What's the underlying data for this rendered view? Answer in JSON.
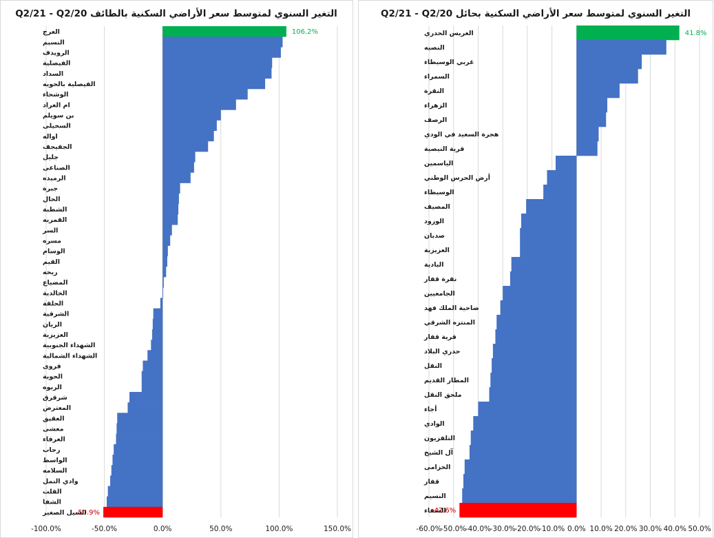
{
  "chart_data": [
    {
      "type": "bar",
      "orientation": "horizontal",
      "title": "التغير السنوي لمتوسط سعر الأراضي السكنية بالطائف Q2/21 - Q2/20",
      "categories": [
        "العرج",
        "النسيم",
        "الرويدف",
        "الفيصلية",
        "السداد",
        "الفيصلية بالحويه",
        "الوشحاء",
        "ام العراد",
        "بن سويلم",
        "السحيلى",
        "اواله",
        "الجفيجف",
        "جليل",
        "الصناعى",
        "الرميده",
        "جبرة",
        "الحال",
        "الشطبة",
        "القمريه",
        "السر",
        "مسره",
        "الوسام",
        "القيم",
        "ريحه",
        "المضياع",
        "الخالدية",
        "الحلقة",
        "الشرقية",
        "الريان",
        "العزيزية",
        "الشهداء الجنوبية",
        "الشهداء الشمالية",
        "قروى",
        "الحوية",
        "الربوه",
        "شرقرق",
        "المعترض",
        "العقيق",
        "معشى",
        "العرفاء",
        "رحاب",
        "الواسط",
        "السلامه",
        "وادي النمل",
        "القلت",
        "الشفا",
        "السيل الصغير"
      ],
      "values": [
        106.2,
        103.0,
        101.5,
        94.0,
        93.5,
        88.0,
        73.0,
        63.0,
        50.0,
        46.5,
        44.0,
        39.0,
        28.0,
        27.0,
        24.0,
        15.0,
        14.0,
        13.5,
        13.0,
        8.0,
        6.5,
        4.5,
        4.0,
        3.0,
        1.0,
        0.5,
        -2.0,
        -8.0,
        -8.5,
        -9.0,
        -10.0,
        -13.0,
        -17.0,
        -18.0,
        -18.0,
        -28.5,
        -30.0,
        -39.0,
        -39.5,
        -40.0,
        -42.0,
        -43.0,
        -44.0,
        -45.0,
        -47.0,
        -48.0,
        -50.9
      ],
      "highlights": {
        "0": "#00b050",
        "46": "#ff0000"
      },
      "bar_color": "#4472c4",
      "data_labels": [
        {
          "index": 0,
          "text": "106.2%",
          "color": "#00b050"
        },
        {
          "index": 46,
          "text": "-50.9%",
          "color": "#c00000"
        }
      ],
      "xlim": [
        -100,
        150
      ],
      "xticks": [
        -100,
        -50,
        0,
        50,
        100,
        150
      ],
      "xtick_labels": [
        "-100.0%",
        "-50.0%",
        "0.0%",
        "50.0%",
        "100.0%",
        "150.0%"
      ],
      "grid": true
    },
    {
      "type": "bar",
      "orientation": "horizontal",
      "title": "التغير السنوي لمتوسط سعر الأراضي السكنية بحائل Q2/21 - Q2/20",
      "categories": [
        "العريس الحدري",
        "النصيه",
        "غربي الوسيطاء",
        "السمراء",
        "النقرة",
        "الزهراء",
        "الرصف",
        "هجرة السعيد في الودي",
        "قرية النيصية",
        "الياسمين",
        "أرض الحرس الوطني",
        "الوسيطاء",
        "المصيف",
        "الورود",
        "صديان",
        "العزيزية",
        "البادية",
        "نقرة قفار",
        "الجامعيين",
        "ضاحية الملك فهد",
        "المنتزه الشرقي",
        "قرية قفار",
        "حدري البلاد",
        "النقل",
        "المطار القديم",
        "ملحق النقل",
        "أجاء",
        "الوادي",
        "التلفزيون",
        "آل الشيخ",
        "الخزامى",
        "قفار",
        "النسيم",
        "الشفاء"
      ],
      "values": [
        41.8,
        36.5,
        26.5,
        25.0,
        17.5,
        12.5,
        12.0,
        9.0,
        8.5,
        -8.5,
        -12.0,
        -13.5,
        -20.5,
        -22.5,
        -23.0,
        -23.0,
        -26.5,
        -27.0,
        -30.0,
        -31.0,
        -32.5,
        -33.0,
        -34.0,
        -34.5,
        -35.0,
        -35.5,
        -40.0,
        -42.0,
        -43.0,
        -43.5,
        -45.5,
        -46.0,
        -46.5,
        -47.6
      ],
      "highlights": {
        "0": "#00b050",
        "33": "#ff0000"
      },
      "bar_color": "#4472c4",
      "data_labels": [
        {
          "index": 0,
          "text": "41.8%",
          "color": "#00b050"
        },
        {
          "index": 33,
          "text": "-47.6%",
          "color": "#c00000"
        }
      ],
      "xlim": [
        -60,
        50
      ],
      "xticks": [
        -60,
        -50,
        -40,
        -30,
        -20,
        -10,
        0,
        10,
        20,
        30,
        40,
        50
      ],
      "xtick_labels": [
        "-60.0%",
        "-50.0%",
        "-40.0%",
        "-30.0%",
        "-20.0%",
        "-10.0%",
        "0.0%",
        "10.0%",
        "20.0%",
        "30.0%",
        "40.0%",
        "50.0%"
      ],
      "grid": true
    }
  ]
}
